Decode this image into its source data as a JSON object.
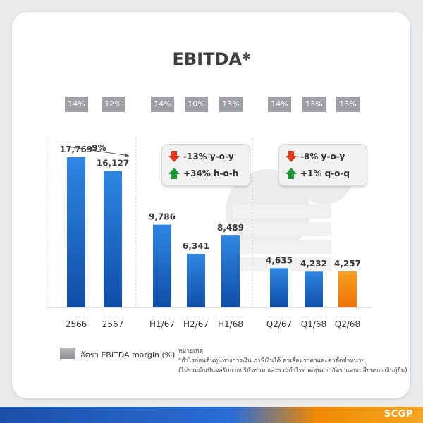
{
  "title": "EBITDA*",
  "brand": "SCGP",
  "chart_data": {
    "type": "bar",
    "categories": [
      "2566",
      "2567",
      "H1/67",
      "H2/67",
      "H1/68",
      "Q2/67",
      "Q1/68",
      "Q2/68"
    ],
    "values": [
      17769,
      16127,
      9786,
      6341,
      8489,
      4635,
      4232,
      4257
    ],
    "value_labels": [
      "17,769",
      "16,127",
      "9,786",
      "6,341",
      "8,489",
      "4,635",
      "4,232",
      "4,257"
    ],
    "ebitda_margin_labels": [
      "14%",
      "12%",
      "14%",
      "10%",
      "13%",
      "14%",
      "13%",
      "13%"
    ],
    "ylim": [
      0,
      20000
    ],
    "groups": [
      [
        0,
        1
      ],
      [
        2,
        3,
        4
      ],
      [
        5,
        6,
        7
      ]
    ],
    "highlight_index": 7,
    "colors": {
      "bar": "#1a5fc4",
      "bar_light": "#2f86e3",
      "highlight": "#f27405",
      "highlight_light": "#f5a020",
      "margin_box": "#9ea0a3"
    },
    "annotations": {
      "annual_change": "-9%",
      "half_year": [
        {
          "direction": "down",
          "text": "-13% y-o-y"
        },
        {
          "direction": "up",
          "text": "+34% h-o-h"
        }
      ],
      "quarter": [
        {
          "direction": "down",
          "text": "-8% y-o-y"
        },
        {
          "direction": "up",
          "text": "+1% q-o-q"
        }
      ]
    }
  },
  "legend": {
    "label": "อัตรา EBITDA margin (%)"
  },
  "notes": {
    "heading": "หมายเหตุ",
    "line1": "*กำไรก่อนต้นทุนทางการเงิน ภาษีเงินได้ ค่าเสื่อมราคาและค่าตัดจำหน่าย",
    "line2": "(ไม่รวมเงินปันผลรับจากบริษัทร่วม และรวมกำไรขาดทุนจากอัตราแลกเปลี่ยนของเงินกู้ยืม)"
  }
}
